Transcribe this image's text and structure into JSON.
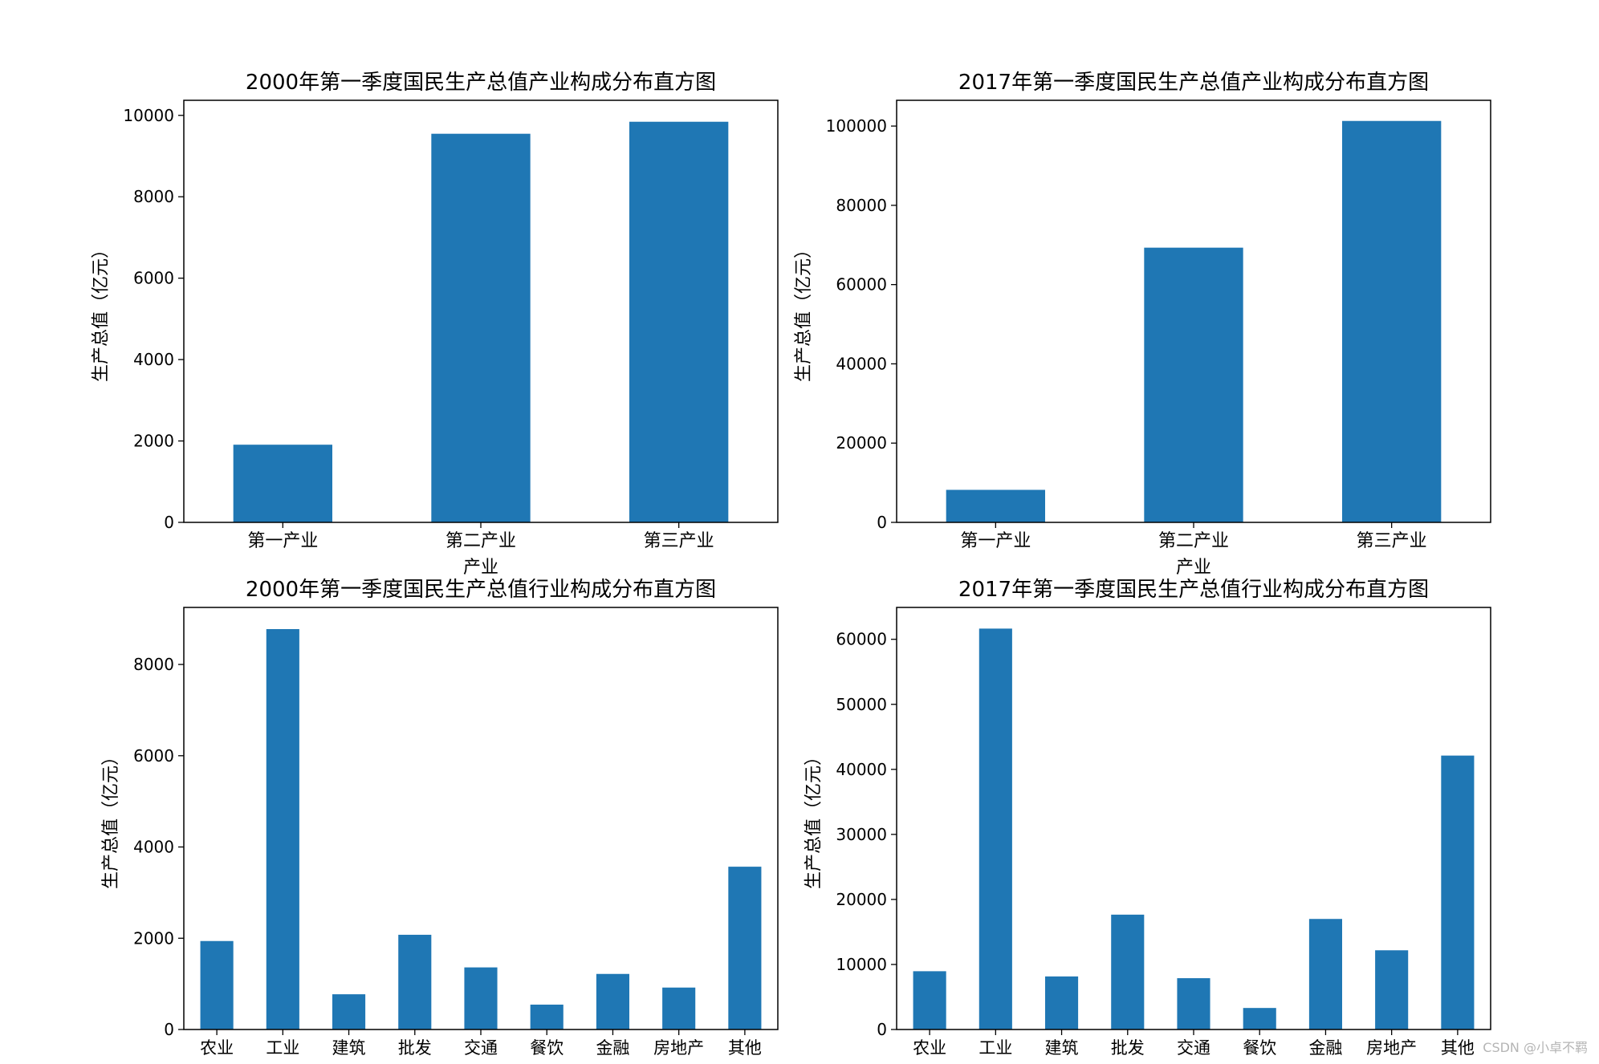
{
  "chart_data": [
    {
      "type": "bar",
      "title": "2000年第一季度国民生产总值产业构成分布直方图",
      "xlabel": "产业",
      "ylabel": "生产总值（亿元）",
      "categories": [
        "第一产业",
        "第二产业",
        "第三产业"
      ],
      "values": [
        1908.3,
        9548.0,
        9843.0
      ],
      "ylim": [
        0,
        10370
      ],
      "yticks": [
        0,
        2000,
        4000,
        6000,
        8000,
        10000
      ],
      "grid": false,
      "color": "#1f77b4"
    },
    {
      "type": "bar",
      "title": "2017年第一季度国民生产总值产业构成分布直方图",
      "xlabel": "产业",
      "ylabel": "生产总值（亿元）",
      "categories": [
        "第一产业",
        "第二产业",
        "第三产业"
      ],
      "values": [
        8205.9,
        69315.5,
        101291.0
      ],
      "ylim": [
        0,
        106500
      ],
      "yticks": [
        0,
        20000,
        40000,
        60000,
        80000,
        100000
      ],
      "grid": false,
      "color": "#1f77b4"
    },
    {
      "type": "bar",
      "title": "2000年第一季度国民生产总值行业构成分布直方图",
      "xlabel": "",
      "ylabel": "生产总值（亿元）",
      "categories": [
        "农业",
        "工业",
        "建筑",
        "批发",
        "交通",
        "餐饮",
        "金融",
        "房地产",
        "其他"
      ],
      "values": [
        1939,
        8775,
        772,
        2076,
        1361,
        545,
        1218,
        919,
        3568
      ],
      "ylim": [
        0,
        9250
      ],
      "yticks": [
        0,
        2000,
        4000,
        6000,
        8000
      ],
      "grid": false,
      "color": "#1f77b4"
    },
    {
      "type": "bar",
      "title": "2017年第一季度国民生产总值行业构成分布直方图",
      "xlabel": "",
      "ylabel": "生产总值（亿元）",
      "categories": [
        "农业",
        "工业",
        "建筑",
        "批发",
        "交通",
        "餐饮",
        "金融",
        "房地产",
        "其他"
      ],
      "values": [
        8960,
        61645,
        8160,
        17660,
        7890,
        3310,
        17000,
        12180,
        42120
      ],
      "ylim": [
        0,
        64900
      ],
      "yticks": [
        0,
        10000,
        20000,
        30000,
        40000,
        50000,
        60000
      ],
      "grid": false,
      "color": "#1f77b4"
    }
  ],
  "watermark": "CSDN @小卓不羁"
}
